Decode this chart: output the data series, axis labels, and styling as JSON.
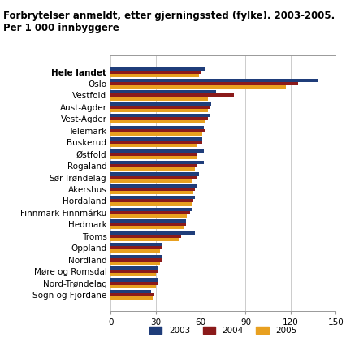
{
  "title_line1": "Forbrytelser anmeldt, etter gjerningssted (fylke). 2003-2005.",
  "title_line2": "Per 1 000 innbyggere",
  "categories": [
    "Hele landet",
    "Oslo",
    "Vestfold",
    "Aust-Agder",
    "Vest-Agder",
    "Telemark",
    "Buskerud",
    "Østfold",
    "Rogaland",
    "Sør-Trøndelag",
    "Akershus",
    "Hordaland",
    "Finnmark Finnmárku",
    "Hedmark",
    "Troms",
    "Oppland",
    "Nordland",
    "Møre og Romsdal",
    "Nord-Trøndelag",
    "Sogn og Fjordane"
  ],
  "values_2003": [
    63,
    138,
    70,
    67,
    66,
    62,
    61,
    62,
    62,
    59,
    58,
    56,
    54,
    50,
    56,
    34,
    34,
    31,
    32,
    27
  ],
  "values_2004": [
    60,
    125,
    82,
    66,
    65,
    63,
    61,
    58,
    57,
    57,
    56,
    55,
    53,
    50,
    47,
    34,
    34,
    31,
    32,
    29
  ],
  "values_2005": [
    59,
    117,
    65,
    65,
    63,
    61,
    58,
    57,
    56,
    54,
    55,
    54,
    51,
    49,
    46,
    33,
    33,
    30,
    30,
    28
  ],
  "color_2003": "#1f3d7a",
  "color_2004": "#8b1a1a",
  "color_2005": "#e8a020",
  "xlim": [
    0,
    150
  ],
  "xticks": [
    0,
    30,
    60,
    90,
    120,
    150
  ],
  "bar_height": 0.28,
  "legend_labels": [
    "2003",
    "2004",
    "2005"
  ],
  "title_fontsize": 8.5,
  "tick_fontsize": 7.5,
  "background_color": "#ffffff",
  "grid_color": "#cccccc"
}
